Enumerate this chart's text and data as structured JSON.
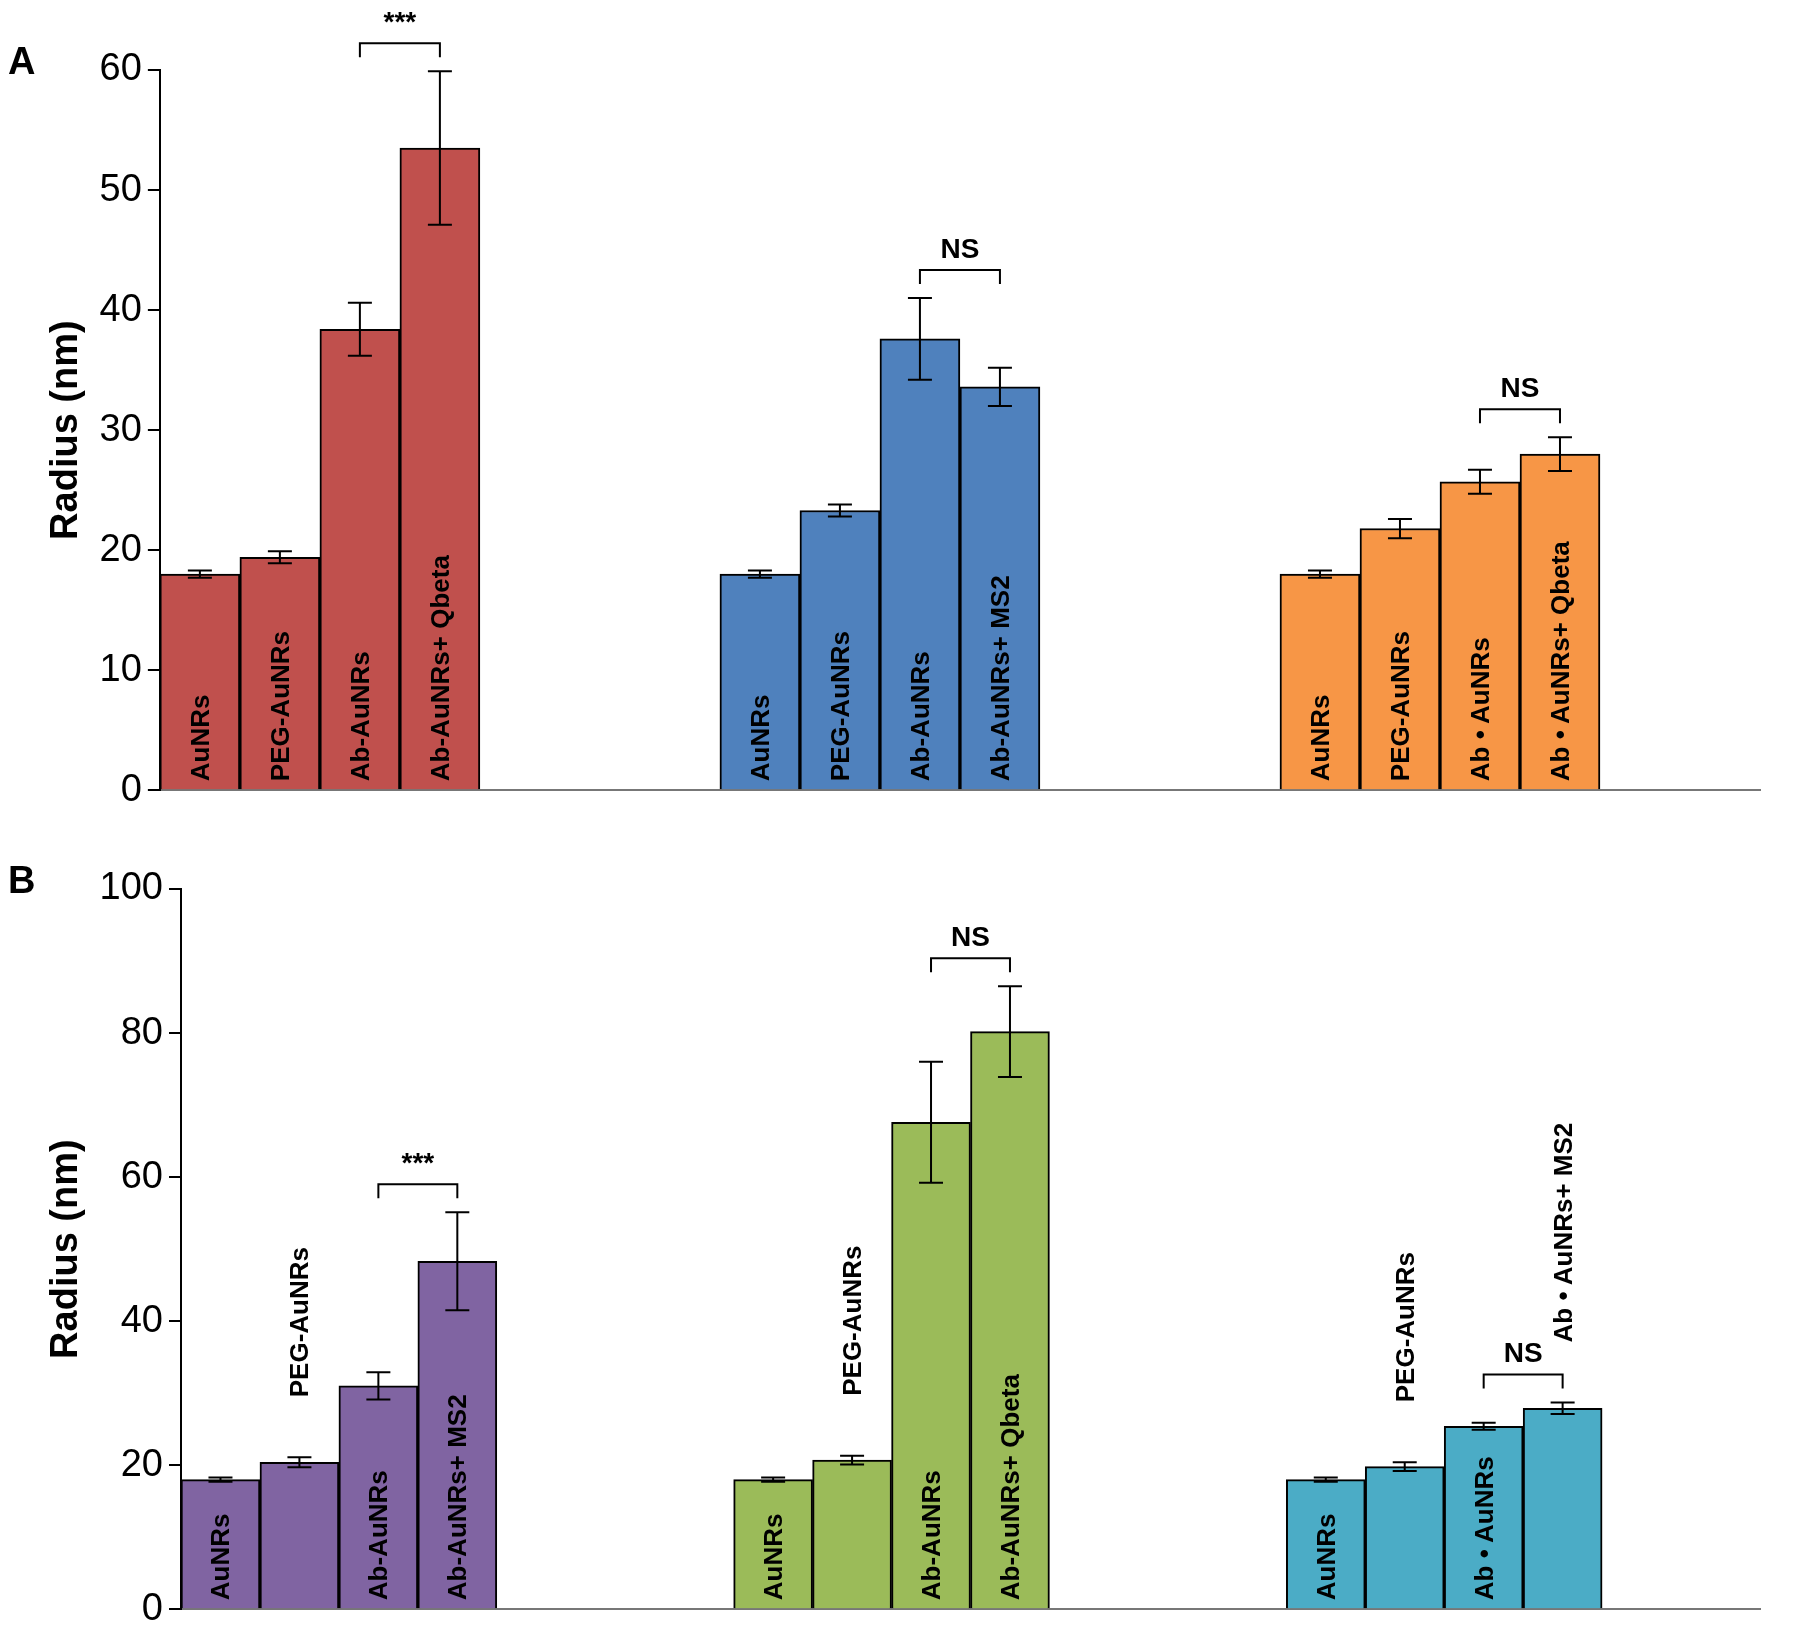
{
  "chart_data": [
    {
      "type": "bar",
      "title": "A",
      "ylabel": "Radius (nm)",
      "categories": [
        "AuNRs",
        "PEG-AuNRs",
        "Ab-AuNRs",
        "Ab-AuNRs+ Qbeta",
        null,
        null,
        null,
        "AuNRs",
        "PEG-AuNRs",
        "Ab-AuNRs",
        "Ab-AuNRs+ MS2",
        null,
        null,
        null,
        "AuNRs",
        "PEG-AuNRs",
        "Ab • AuNRs",
        "Ab • AuNRs+ Qbeta",
        null,
        null
      ],
      "series": [
        {
          "colors": [
            "#c0504d",
            "#c0504d",
            "#c0504d",
            "#c0504d",
            null,
            null,
            null,
            "#4f81bd",
            "#4f81bd",
            "#4f81bd",
            "#4f81bd",
            null,
            null,
            null,
            "#f79646",
            "#f79646",
            "#f79646",
            "#f79646",
            null,
            null
          ],
          "values": [
            18,
            19.4,
            38.4,
            53.5,
            null,
            null,
            null,
            18,
            23.3,
            37.6,
            33.6,
            null,
            null,
            null,
            18,
            21.8,
            25.7,
            28,
            null,
            null
          ],
          "errors": [
            0.3,
            0.5,
            2.2,
            6.4,
            null,
            null,
            null,
            0.3,
            0.5,
            3.4,
            1.6,
            null,
            null,
            null,
            0.3,
            0.8,
            1,
            1.4,
            null,
            null
          ]
        }
      ],
      "ylim": [
        0,
        60
      ],
      "yticks": [
        0,
        10,
        20,
        30,
        40,
        50,
        60
      ],
      "annotations": [
        "***",
        "NS",
        "NS"
      ]
    },
    {
      "type": "bar",
      "title": "B",
      "ylabel": "Radius (nm)",
      "categories": [
        "AuNRs",
        "PEG-AuNRs",
        "Ab-AuNRs",
        "Ab-AuNRs+ MS2",
        null,
        null,
        null,
        "AuNRs",
        "PEG-AuNRs",
        "Ab-AuNRs",
        "Ab-AuNRs+ Qbeta",
        null,
        null,
        null,
        "AuNRs",
        "PEG-AuNRs",
        "Ab • AuNRs",
        "Ab • AuNRs+ MS2",
        null,
        null
      ],
      "series": [
        {
          "colors": [
            "#8064a2",
            "#8064a2",
            "#8064a2",
            "#8064a2",
            null,
            null,
            null,
            "#9bbb59",
            "#9bbb59",
            "#9bbb59",
            "#9bbb59",
            null,
            null,
            null,
            "#4bacc6",
            "#4bacc6",
            "#4bacc6",
            "#4bacc6",
            null,
            null
          ],
          "values": [
            18,
            20.4,
            31,
            48.3,
            null,
            null,
            null,
            18,
            20.7,
            67.6,
            80.2,
            null,
            null,
            null,
            18,
            19.8,
            25.4,
            27.9,
            null,
            null
          ],
          "errors": [
            0.3,
            0.7,
            1.9,
            6.8,
            null,
            null,
            null,
            0.3,
            0.6,
            8.4,
            6.3,
            null,
            null,
            null,
            0.3,
            0.6,
            0.5,
            0.8,
            null,
            null
          ]
        }
      ],
      "ylim": [
        0,
        100
      ],
      "yticks": [
        0,
        20,
        40,
        60,
        80,
        100
      ],
      "annotations": [
        "***",
        "NS",
        "NS"
      ]
    }
  ]
}
